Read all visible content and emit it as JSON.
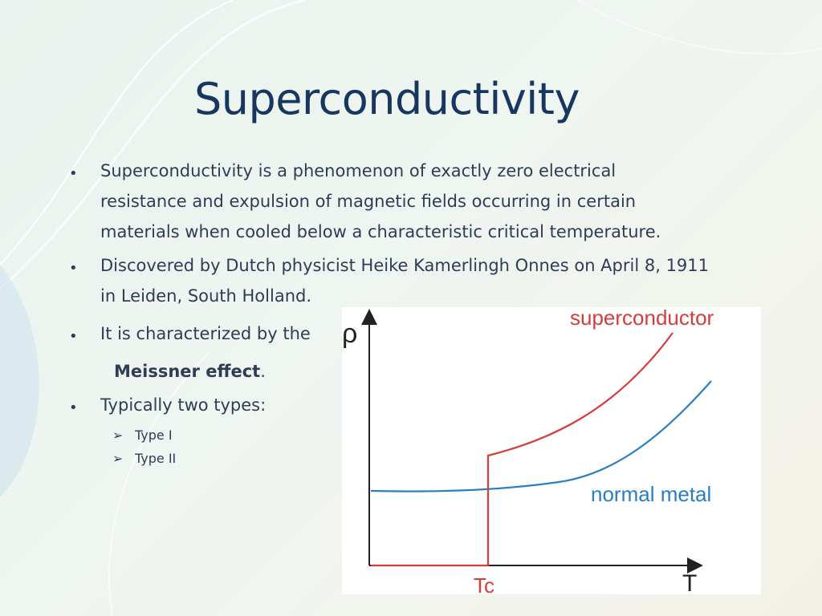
{
  "slide": {
    "title": "Superconductivity",
    "bullets": [
      {
        "lines": [
          "Superconductivity is a phenomenon of exactly zero electrical",
          "resistance and expulsion of magnetic fields occurring in certain",
          "materials when cooled below a characteristic critical temperature."
        ]
      },
      {
        "lines": [
          "Discovered by Dutch physicist Heike Kamerlingh Onnes on April 8, 1911",
          "in Leiden, South Holland."
        ]
      },
      {
        "lines": [
          "It is characterized by the"
        ],
        "emphasis": "Meissner effect",
        "emphasis_suffix": "."
      },
      {
        "lines": [
          "Typically two types:"
        ],
        "sub_items": [
          "Type I",
          "Type II"
        ]
      }
    ],
    "bullet_symbol": "•",
    "sub_symbol": "➢"
  },
  "chart_data": {
    "type": "line",
    "ylabel": "ρ",
    "xlabel": "T",
    "x_tick_labels": [
      "Tc"
    ],
    "series": [
      {
        "name": "superconductor",
        "color": "#d93a3a",
        "shape": "zero below Tc, jumps at Tc, then rises"
      },
      {
        "name": "normal metal",
        "color": "#2a7fc0",
        "shape": "flat at low T, rises at high T"
      }
    ]
  }
}
